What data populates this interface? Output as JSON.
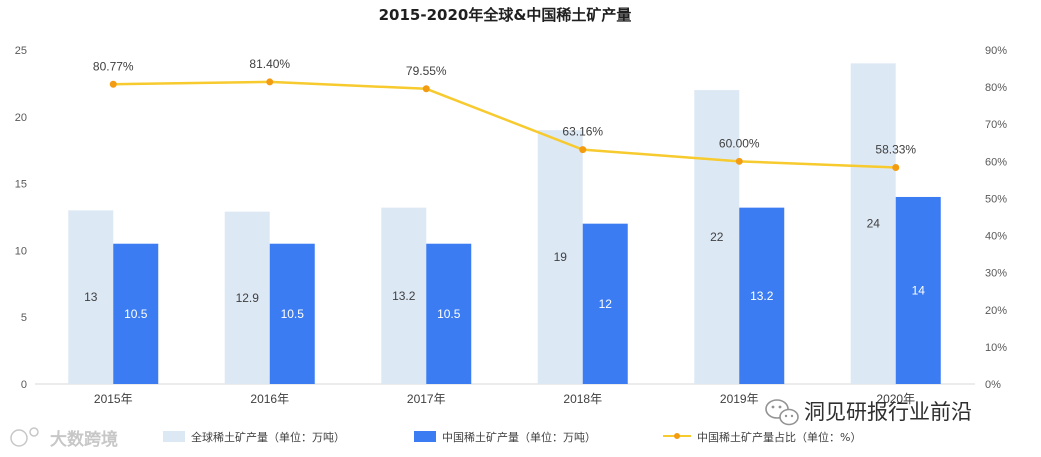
{
  "chart_data": {
    "type": "bar",
    "title": "2015-2020年全球&中国稀土矿产量",
    "categories": [
      "2015年",
      "2016年",
      "2017年",
      "2018年",
      "2019年",
      "2020年"
    ],
    "series": [
      {
        "name": "全球稀土矿产量（单位：万吨）",
        "type": "bar",
        "axis": "left",
        "color": "#dde8f5",
        "values": [
          13,
          12.9,
          13.2,
          19,
          22,
          24
        ]
      },
      {
        "name": "中国稀土矿产量（单位：万吨）",
        "type": "bar",
        "axis": "left",
        "color": "#3b7cf2",
        "values": [
          10.5,
          10.5,
          10.5,
          12,
          13.2,
          14
        ]
      },
      {
        "name": "中国稀土矿产量占比（单位：%）",
        "type": "line",
        "axis": "right",
        "color": "#f7ca2e",
        "marker_color": "#f39c12",
        "values": [
          80.77,
          81.4,
          79.55,
          63.16,
          60.0,
          58.33
        ],
        "labels": [
          "80.77%",
          "81.40%",
          "79.55%",
          "63.16%",
          "60.00%",
          "58.33%"
        ]
      }
    ],
    "y_left": {
      "lim": [
        0,
        25
      ],
      "ticks": [
        "0",
        "5",
        "10",
        "15",
        "20",
        "25"
      ]
    },
    "y_right": {
      "lim": [
        0,
        90
      ],
      "ticks": [
        "0%",
        "10%",
        "20%",
        "30%",
        "40%",
        "50%",
        "60%",
        "70%",
        "80%",
        "90%"
      ]
    },
    "grid": false,
    "legend": "bottom"
  },
  "watermarks": {
    "left": "大数跨境",
    "right": "洞见研报行业前沿"
  }
}
